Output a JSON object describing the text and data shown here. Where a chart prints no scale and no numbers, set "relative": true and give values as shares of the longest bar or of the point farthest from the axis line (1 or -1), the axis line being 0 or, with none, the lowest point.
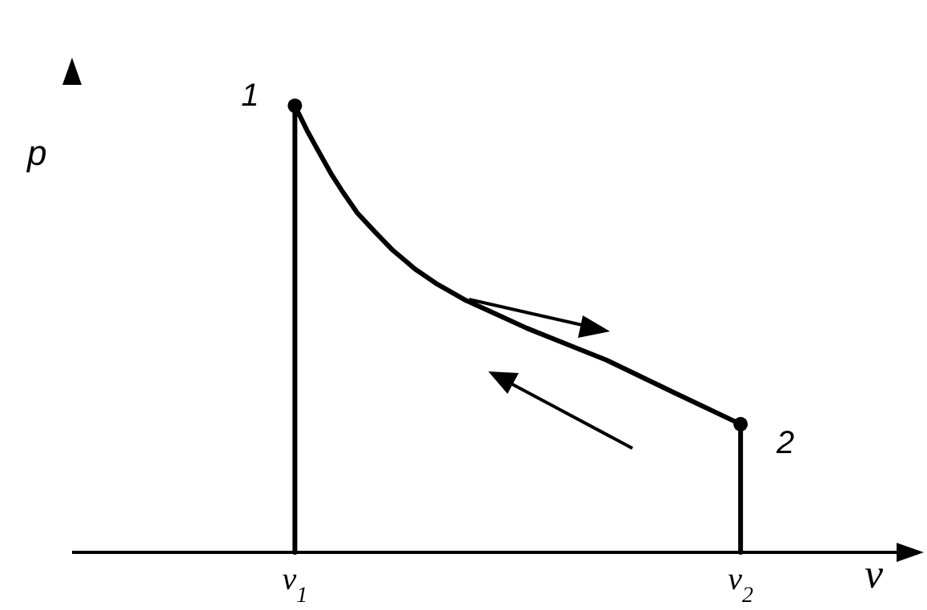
{
  "chart_data": {
    "type": "line",
    "relative": true,
    "xlabel": "v",
    "ylabel": "p",
    "xlim": [
      0.5,
      2.35
    ],
    "xticks": [
      {
        "value": 1,
        "label": "v$_{1}$"
      },
      {
        "value": 2,
        "label": "v$_{2}$"
      }
    ],
    "marker": "none",
    "grid": false,
    "series": [
      {
        "type": "line",
        "color": "#000000",
        "x": [
          1,
          1,
          1.027,
          1.054,
          1.081,
          1.108,
          1.14,
          1.18,
          1.22,
          1.27,
          1.32,
          1.38,
          1.45,
          1.52,
          1.6,
          1.7,
          1.85,
          2.0,
          2.0
        ],
        "values": [
          0,
          1.0,
          0.945,
          0.896,
          0.848,
          0.806,
          0.76,
          0.717,
          0.676,
          0.634,
          0.6,
          0.566,
          0.534,
          0.502,
          0.47,
          0.43,
          0.358,
          0.287,
          0
        ]
      },
      {
        "type": "scatter",
        "marker": "circle",
        "color": "#000000",
        "x": [
          1,
          2
        ],
        "values": [
          1,
          0.287
        ]
      }
    ],
    "annotations": [
      {
        "text": "1",
        "x": 1,
        "y": 1
      },
      {
        "text": "2",
        "x": 2,
        "y": 0.287
      }
    ]
  }
}
